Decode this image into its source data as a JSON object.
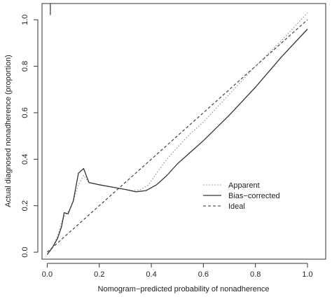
{
  "chart_data": {
    "type": "line",
    "xlabel": "Nomogram−predicted probability of nonadherence",
    "ylabel": "Actual diagnosed nonadherence (proportion)",
    "xlim": [
      -0.02,
      1.07
    ],
    "ylim": [
      -0.03,
      1.07
    ],
    "xticks": [
      0.0,
      0.2,
      0.4,
      0.6,
      0.8,
      1.0
    ],
    "xtick_labels": [
      "0.0",
      "0.2",
      "0.4",
      "0.6",
      "0.8",
      "1.0"
    ],
    "yticks": [
      0.0,
      0.2,
      0.4,
      0.6,
      0.8,
      1.0
    ],
    "ytick_labels": [
      "0.0",
      "0.2",
      "0.4",
      "0.6",
      "0.8",
      "1.0"
    ],
    "grid": false,
    "legend_position": "center-right",
    "rug": {
      "x": [
        0.012
      ],
      "y_from": 1.02,
      "y_to": 1.07
    },
    "series": [
      {
        "name": "Apparent",
        "style": "dotted",
        "color": "#888888",
        "x": [
          0.0,
          0.02,
          0.04,
          0.055,
          0.07,
          0.085,
          0.1,
          0.12,
          0.14,
          0.16,
          0.2,
          0.25,
          0.3,
          0.33,
          0.36,
          0.39,
          0.42,
          0.46,
          0.5,
          0.55,
          0.6,
          0.7,
          0.8,
          0.9,
          1.0
        ],
        "y": [
          -0.01,
          0.02,
          0.07,
          0.13,
          0.16,
          0.18,
          0.22,
          0.29,
          0.33,
          0.3,
          0.29,
          0.28,
          0.27,
          0.265,
          0.27,
          0.29,
          0.34,
          0.4,
          0.45,
          0.51,
          0.56,
          0.68,
          0.8,
          0.91,
          1.03
        ]
      },
      {
        "name": "Bias−corrected",
        "style": "solid",
        "color": "#333333",
        "x": [
          0.0,
          0.02,
          0.04,
          0.055,
          0.065,
          0.08,
          0.1,
          0.12,
          0.14,
          0.16,
          0.2,
          0.25,
          0.3,
          0.34,
          0.38,
          0.42,
          0.46,
          0.5,
          0.55,
          0.6,
          0.7,
          0.8,
          0.9,
          1.0
        ],
        "y": [
          -0.01,
          0.02,
          0.06,
          0.11,
          0.17,
          0.165,
          0.22,
          0.34,
          0.36,
          0.3,
          0.29,
          0.28,
          0.27,
          0.26,
          0.265,
          0.29,
          0.33,
          0.38,
          0.43,
          0.48,
          0.59,
          0.71,
          0.84,
          0.96
        ]
      },
      {
        "name": "Ideal",
        "style": "dashed",
        "color": "#333333",
        "x": [
          0.0,
          1.0
        ],
        "y": [
          0.0,
          1.0
        ]
      }
    ]
  }
}
